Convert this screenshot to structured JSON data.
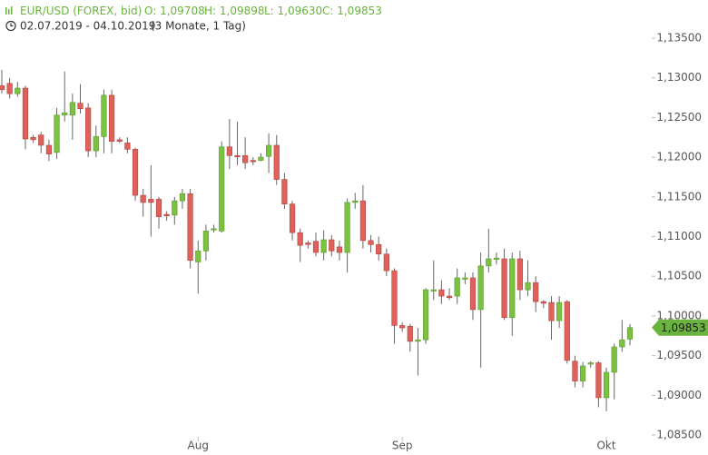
{
  "chart_data": {
    "type": "candlestick",
    "title": "EUR/USD (FOREX, bid)",
    "ohlc_labels": [
      "O: 1,09708",
      "H: 1,09898",
      "L: 1,09630",
      "C: 1,09853"
    ],
    "date_range": "02.07.2019 - 04.10.2019",
    "period": "(3 Monate, 1 Tag)",
    "categories": [
      null,
      null,
      null,
      null,
      null,
      null,
      null,
      null,
      null,
      null,
      null,
      null,
      null,
      null,
      null,
      null,
      null,
      null,
      null,
      null,
      null,
      null,
      null,
      null,
      null,
      "Aug",
      null,
      null,
      null,
      null,
      null,
      null,
      null,
      null,
      null,
      null,
      null,
      null,
      null,
      null,
      null,
      null,
      null,
      null,
      null,
      null,
      null,
      null,
      null,
      null,
      null,
      "Sep",
      null,
      null,
      null,
      null,
      null,
      null,
      null,
      null,
      null,
      null,
      null,
      null,
      null,
      null,
      null,
      null,
      null,
      null,
      null,
      null,
      null,
      null,
      null,
      null,
      null,
      "Okt",
      null,
      null,
      null
    ],
    "series": [
      {
        "up_color": "#7cc242",
        "down_color": "#e0605a",
        "open": [
          1.129,
          1.1293,
          1.128,
          1.1287,
          1.1225,
          1.1228,
          1.1215,
          1.1206,
          1.1253,
          1.1253,
          1.1268,
          1.1262,
          1.1208,
          1.1226,
          1.1278,
          1.1222,
          1.1218,
          1.121,
          1.1152,
          1.1147,
          1.1147,
          1.1128,
          1.1127,
          1.1145,
          1.1154,
          1.1068,
          1.1082,
          1.1109,
          1.1107,
          1.1213,
          1.1202,
          1.1202,
          1.1196,
          1.1196,
          1.1201,
          1.1215,
          1.1172,
          1.1141,
          1.1105,
          1.1092,
          1.1094,
          1.108,
          1.1096,
          1.1087,
          1.108,
          1.1143,
          1.1145,
          1.1095,
          1.109,
          1.1078,
          1.1057,
          1.0988,
          1.0987,
          1.0968,
          1.097,
          1.1032,
          1.1033,
          1.1025,
          1.1025,
          1.1047,
          1.1048,
          1.1008,
          1.1063,
          1.1072,
          1.1072,
          1.0998,
          1.1072,
          1.1033,
          1.1042,
          1.1018,
          1.1017,
          1.0994,
          1.1018,
          1.0943,
          1.0918,
          1.094,
          1.0941,
          1.0897,
          1.0929,
          1.0961,
          1.09708
        ],
        "high": [
          1.131,
          1.13,
          1.1295,
          1.129,
          1.1228,
          1.1232,
          1.1222,
          1.1262,
          1.1308,
          1.128,
          1.1292,
          1.1268,
          1.124,
          1.1285,
          1.1285,
          1.1225,
          1.1225,
          1.1212,
          1.116,
          1.119,
          1.115,
          1.1132,
          1.115,
          1.116,
          1.116,
          1.1095,
          1.1115,
          1.1115,
          1.122,
          1.1248,
          1.1245,
          1.1225,
          1.12,
          1.1205,
          1.123,
          1.1228,
          1.118,
          1.1145,
          1.111,
          1.1095,
          1.1105,
          1.1108,
          1.1102,
          1.1095,
          1.1148,
          1.1155,
          1.1165,
          1.1102,
          1.11,
          1.1085,
          1.106,
          1.0992,
          1.099,
          1.0985,
          1.1035,
          1.107,
          1.1045,
          1.1035,
          1.106,
          1.1055,
          1.1055,
          1.108,
          1.111,
          1.108,
          1.1085,
          1.108,
          1.1082,
          1.107,
          1.105,
          1.102,
          1.1025,
          1.1025,
          1.102,
          1.095,
          1.0942,
          1.0943,
          1.0943,
          1.0935,
          1.0965,
          1.0995,
          1.09898
        ],
        "low": [
          1.128,
          1.1274,
          1.1276,
          1.121,
          1.1218,
          1.1205,
          1.1195,
          1.1198,
          1.1245,
          1.1222,
          1.1255,
          1.12,
          1.12,
          1.1205,
          1.1205,
          1.1218,
          1.1205,
          1.1145,
          1.1125,
          1.11,
          1.111,
          1.112,
          1.1115,
          1.1135,
          1.106,
          1.1028,
          1.107,
          1.1105,
          1.1105,
          1.1185,
          1.119,
          1.1185,
          1.119,
          1.1195,
          1.118,
          1.1165,
          1.1135,
          1.1095,
          1.1068,
          1.1085,
          1.1075,
          1.107,
          1.1075,
          1.107,
          1.1055,
          1.1135,
          1.1085,
          1.108,
          1.107,
          1.105,
          1.0965,
          1.098,
          1.0955,
          1.0925,
          1.0965,
          1.102,
          1.1015,
          1.102,
          1.1015,
          1.104,
          1.0995,
          1.0935,
          1.1055,
          1.1065,
          1.0995,
          1.0975,
          1.102,
          1.1025,
          1.1005,
          1.101,
          1.097,
          1.0985,
          1.094,
          1.091,
          1.091,
          1.0935,
          1.0885,
          1.088,
          1.0895,
          1.0955,
          1.0963
        ],
        "close": [
          1.1285,
          1.128,
          1.1287,
          1.1223,
          1.1222,
          1.1215,
          1.1204,
          1.1253,
          1.1256,
          1.1269,
          1.1261,
          1.1208,
          1.1226,
          1.1278,
          1.122,
          1.122,
          1.121,
          1.1152,
          1.1143,
          1.1143,
          1.1125,
          1.1126,
          1.1145,
          1.1154,
          1.107,
          1.1082,
          1.1107,
          1.111,
          1.1213,
          1.1202,
          1.1201,
          1.1193,
          1.1195,
          1.12,
          1.1215,
          1.1172,
          1.1141,
          1.1105,
          1.1089,
          1.109,
          1.108,
          1.1096,
          1.1082,
          1.108,
          1.1143,
          1.1145,
          1.1095,
          1.109,
          1.1078,
          1.1057,
          1.0988,
          1.0985,
          1.0968,
          1.097,
          1.1033,
          1.1033,
          1.1025,
          1.1023,
          1.1048,
          1.1048,
          1.1008,
          1.1063,
          1.1072,
          1.1073,
          1.0998,
          1.1072,
          1.1033,
          1.1042,
          1.1018,
          1.1016,
          1.0994,
          1.1017,
          1.0944,
          1.0918,
          1.0937,
          1.0941,
          1.0897,
          1.0929,
          1.0961,
          1.097,
          1.09853
        ]
      }
    ],
    "current_price": {
      "value": 1.09853,
      "label": "1,09853"
    },
    "ylim": [
      1.083,
      1.137
    ],
    "yticks": [
      {
        "value": 1.085,
        "label": "1,08500"
      },
      {
        "value": 1.09,
        "label": "1,09000"
      },
      {
        "value": 1.095,
        "label": "1,09500"
      },
      {
        "value": 1.1,
        "label": "1,10000"
      },
      {
        "value": 1.105,
        "label": "1,10500"
      },
      {
        "value": 1.11,
        "label": "1,11000"
      },
      {
        "value": 1.115,
        "label": "1,11500"
      },
      {
        "value": 1.12,
        "label": "1,12000"
      },
      {
        "value": 1.125,
        "label": "1,12500"
      },
      {
        "value": 1.13,
        "label": "1,13000"
      },
      {
        "value": 1.135,
        "label": "1,13500"
      }
    ],
    "grid": false
  }
}
